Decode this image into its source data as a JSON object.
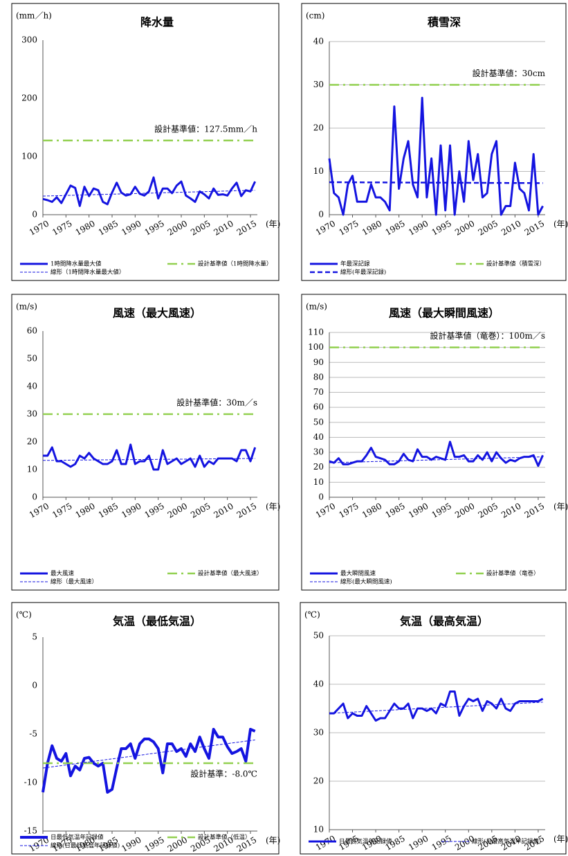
{
  "chart_data": [
    {
      "type": "line",
      "title": "降水量",
      "y_unit": "(mm／h)",
      "x_label": "(年)",
      "annotation": "設計基準値：127.5mm／h",
      "grid": false,
      "x": [
        1970,
        1971,
        1972,
        1973,
        1974,
        1975,
        1976,
        1977,
        1978,
        1979,
        1980,
        1981,
        1982,
        1983,
        1984,
        1985,
        1986,
        1987,
        1988,
        1989,
        1990,
        1991,
        1992,
        1993,
        1994,
        1995,
        1996,
        1997,
        1998,
        1999,
        2000,
        2001,
        2002,
        2003,
        2004,
        2005,
        2006,
        2007,
        2008,
        2009,
        2010,
        2011,
        2012,
        2013,
        2014,
        2015,
        2016
      ],
      "xlim": [
        1970,
        2016.5
      ],
      "xticks": [
        1970,
        1975,
        1980,
        1985,
        1990,
        1995,
        2000,
        2005,
        2010,
        2015
      ],
      "ylim": [
        0,
        300
      ],
      "yticks": [
        0,
        100,
        200,
        300
      ],
      "series": [
        {
          "name": "1時間降水量最大値",
          "color": "#1414e0",
          "style": "solid",
          "values": [
            27,
            25,
            22,
            30,
            20,
            35,
            50,
            46,
            15,
            48,
            32,
            45,
            42,
            22,
            18,
            38,
            55,
            38,
            33,
            35,
            48,
            36,
            33,
            40,
            64,
            28,
            45,
            45,
            37,
            50,
            57,
            33,
            28,
            22,
            40,
            35,
            28,
            45,
            34,
            35,
            33,
            45,
            55,
            32,
            42,
            40,
            57
          ]
        },
        {
          "name": "設計基準値（1時間降水量）",
          "color": "#92d050",
          "style": "dashdot",
          "x": [
            1970,
            2016
          ],
          "values": [
            127.5,
            127.5
          ]
        },
        {
          "name": "線形（1時間降水量最大値）",
          "color": "#1414e0",
          "style": "dashed",
          "x": [
            1970,
            2016
          ],
          "values": [
            32,
            42
          ]
        }
      ]
    },
    {
      "type": "line",
      "title": "積雪深",
      "y_unit": "(cm)",
      "x_label": "(年)",
      "annotation": "設計基準値：30cm",
      "grid": true,
      "x": [
        1970,
        1971,
        1972,
        1973,
        1974,
        1975,
        1976,
        1977,
        1978,
        1979,
        1980,
        1981,
        1982,
        1983,
        1984,
        1985,
        1986,
        1987,
        1988,
        1989,
        1990,
        1991,
        1992,
        1993,
        1994,
        1995,
        1996,
        1997,
        1998,
        1999,
        2000,
        2001,
        2002,
        2003,
        2004,
        2005,
        2006,
        2007,
        2008,
        2009,
        2010,
        2011,
        2012,
        2013,
        2014,
        2015,
        2016
      ],
      "xlim": [
        1970,
        2016.5
      ],
      "xticks": [
        1970,
        1975,
        1980,
        1985,
        1990,
        1995,
        2000,
        2005,
        2010,
        2015
      ],
      "ylim": [
        0,
        40
      ],
      "yticks": [
        0,
        10,
        20,
        30,
        40
      ],
      "series": [
        {
          "name": "年最深記録",
          "color": "#1414e0",
          "style": "solid",
          "values": [
            13,
            5,
            4,
            0,
            7,
            9,
            3,
            3,
            3,
            7,
            4,
            4,
            3,
            1,
            25,
            6,
            13,
            17,
            7,
            4,
            27,
            4,
            13,
            0,
            16,
            1,
            16,
            0,
            10,
            3,
            17,
            8,
            14,
            4,
            5,
            14,
            17,
            0,
            2,
            2,
            12,
            6,
            5,
            1,
            14,
            0,
            2
          ]
        },
        {
          "name": "設計基準値（積雪深）",
          "color": "#92d050",
          "style": "dashdot",
          "x": [
            1970,
            2016
          ],
          "values": [
            30,
            30
          ]
        },
        {
          "name": "線形(年最深記録)",
          "color": "#1414e0",
          "style": "dashedbold",
          "x": [
            1970,
            2016
          ],
          "values": [
            7.5,
            7.3
          ]
        }
      ]
    },
    {
      "type": "line",
      "title": "風速（最大風速）",
      "y_unit": "(m/s)",
      "x_label": "(年)",
      "annotation": "設計基準値：30m／s",
      "grid": false,
      "x": [
        1970,
        1971,
        1972,
        1973,
        1974,
        1975,
        1976,
        1977,
        1978,
        1979,
        1980,
        1981,
        1982,
        1983,
        1984,
        1985,
        1986,
        1987,
        1988,
        1989,
        1990,
        1991,
        1992,
        1993,
        1994,
        1995,
        1996,
        1997,
        1998,
        1999,
        2000,
        2001,
        2002,
        2003,
        2004,
        2005,
        2006,
        2007,
        2008,
        2009,
        2010,
        2011,
        2012,
        2013,
        2014,
        2015,
        2016
      ],
      "xlim": [
        1970,
        2016.5
      ],
      "xticks": [
        1970,
        1975,
        1980,
        1985,
        1990,
        1995,
        2000,
        2005,
        2010,
        2015
      ],
      "ylim": [
        0,
        60
      ],
      "yticks": [
        0,
        10,
        20,
        30,
        40,
        50,
        60
      ],
      "series": [
        {
          "name": "最大風速",
          "color": "#1414e0",
          "style": "solid",
          "values": [
            15,
            15,
            18,
            13,
            13,
            12,
            11,
            12,
            15,
            14,
            16,
            14,
            13,
            12,
            12,
            13,
            17,
            12,
            12,
            19,
            12,
            13,
            13,
            15,
            10,
            10,
            17,
            12,
            13,
            14,
            12,
            13,
            14,
            11,
            15,
            11,
            13,
            12,
            14,
            14,
            14,
            14,
            13,
            17,
            17,
            13,
            18
          ]
        },
        {
          "name": "設計基準値（最大風速）",
          "color": "#92d050",
          "style": "dashdot",
          "x": [
            1970,
            2016
          ],
          "values": [
            30,
            30
          ]
        },
        {
          "name": "線形（最大風速）",
          "color": "#1414e0",
          "style": "dashed",
          "x": [
            1970,
            2016
          ],
          "values": [
            13.3,
            14
          ]
        }
      ]
    },
    {
      "type": "line",
      "title": "風速（最大瞬間風速）",
      "y_unit": "(m/s)",
      "x_label": "(年)",
      "annotation": "設計基準値（竜巻）：100m／s",
      "grid": true,
      "x": [
        1970,
        1971,
        1972,
        1973,
        1974,
        1975,
        1976,
        1977,
        1978,
        1979,
        1980,
        1981,
        1982,
        1983,
        1984,
        1985,
        1986,
        1987,
        1988,
        1989,
        1990,
        1991,
        1992,
        1993,
        1994,
        1995,
        1996,
        1997,
        1998,
        1999,
        2000,
        2001,
        2002,
        2003,
        2004,
        2005,
        2006,
        2007,
        2008,
        2009,
        2010,
        2011,
        2012,
        2013,
        2014,
        2015,
        2016
      ],
      "xlim": [
        1970,
        2016.5
      ],
      "xticks": [
        1970,
        1975,
        1980,
        1985,
        1990,
        1995,
        2000,
        2005,
        2010,
        2015
      ],
      "ylim": [
        0,
        110
      ],
      "yticks": [
        0,
        10,
        20,
        30,
        40,
        50,
        60,
        70,
        80,
        90,
        100,
        110
      ],
      "series": [
        {
          "name": "最大瞬間風速",
          "color": "#1414e0",
          "style": "solid",
          "values": [
            24,
            23,
            26,
            22,
            22,
            23,
            24,
            24,
            28,
            33,
            27,
            26,
            25,
            22,
            22,
            24,
            29,
            25,
            24,
            32,
            27,
            27,
            25,
            27,
            26,
            25,
            37,
            27,
            27,
            28,
            24,
            24,
            28,
            25,
            30,
            24,
            30,
            26,
            23,
            25,
            24,
            26,
            27,
            27,
            28,
            21,
            28
          ]
        },
        {
          "name": "設計基準値（竜巻）",
          "color": "#92d050",
          "style": "dashdot",
          "x": [
            1970,
            2016
          ],
          "values": [
            100,
            100
          ]
        },
        {
          "name": "線形(最大瞬間風速)",
          "color": "#1414e0",
          "style": "dashed",
          "x": [
            1970,
            2016
          ],
          "values": [
            23,
            27
          ]
        }
      ]
    },
    {
      "type": "line",
      "title": "気温（最低気温）",
      "y_unit": "(℃)",
      "x_label": "(年)",
      "annotation": "設計基準：-8.0℃",
      "grid": false,
      "x": [
        1970,
        1971,
        1972,
        1973,
        1974,
        1975,
        1976,
        1977,
        1978,
        1979,
        1980,
        1981,
        1982,
        1983,
        1984,
        1985,
        1986,
        1987,
        1988,
        1989,
        1990,
        1991,
        1992,
        1993,
        1994,
        1995,
        1996,
        1997,
        1998,
        1999,
        2000,
        2001,
        2002,
        2003,
        2004,
        2005,
        2006,
        2007,
        2008,
        2009,
        2010,
        2011,
        2012,
        2013,
        2014,
        2015,
        2016
      ],
      "xlim": [
        1970,
        2016.5
      ],
      "xticks": [
        1970,
        1975,
        1980,
        1985,
        1990,
        1995,
        2000,
        2005,
        2010,
        2015
      ],
      "ylim": [
        -15,
        5
      ],
      "yticks": [
        -15,
        -10,
        -5,
        0,
        5
      ],
      "series": [
        {
          "name": "日最低気温年記録値",
          "color": "#1414e0",
          "style": "solidbold",
          "values": [
            -11,
            -8,
            -6.2,
            -7.5,
            -7.8,
            -7,
            -9.3,
            -8.3,
            -8.7,
            -7.5,
            -7.4,
            -8,
            -8.3,
            -8,
            -11,
            -10.7,
            -8.5,
            -6.5,
            -6.5,
            -6,
            -7.5,
            -6,
            -5.5,
            -5.5,
            -5.8,
            -6.5,
            -9,
            -6,
            -6,
            -6.8,
            -6.5,
            -7.3,
            -6,
            -6.8,
            -5.3,
            -6.5,
            -7.5,
            -4.5,
            -5.3,
            -5.3,
            -6.3,
            -7,
            -6.8,
            -6.5,
            -7.8,
            -4.5,
            -4.7
          ]
        },
        {
          "name": "設計基準値（低温）",
          "color": "#92d050",
          "style": "dashdot",
          "x": [
            1970,
            2016
          ],
          "values": [
            -8,
            -8
          ]
        },
        {
          "name": "線形(日最低気温年記録値)",
          "color": "#1414e0",
          "style": "dashed",
          "x": [
            1970,
            2016
          ],
          "values": [
            -8.5,
            -5.6
          ]
        }
      ]
    },
    {
      "type": "line",
      "title": "気温（最高気温）",
      "y_unit": "(℃)",
      "x_label": "(年)",
      "grid": true,
      "x": [
        1970,
        1971,
        1972,
        1973,
        1974,
        1975,
        1976,
        1977,
        1978,
        1979,
        1980,
        1981,
        1982,
        1983,
        1984,
        1985,
        1986,
        1987,
        1988,
        1989,
        1990,
        1991,
        1992,
        1993,
        1994,
        1995,
        1996,
        1997,
        1998,
        1999,
        2000,
        2001,
        2002,
        2003,
        2004,
        2005,
        2006,
        2007,
        2008,
        2009,
        2010,
        2011,
        2012,
        2013,
        2014,
        2015,
        2016
      ],
      "xlim": [
        1970,
        2016.5
      ],
      "xticks": [
        1970,
        1975,
        1980,
        1985,
        1990,
        1995,
        2000,
        2005,
        2010,
        2015
      ],
      "ylim": [
        10,
        50
      ],
      "yticks": [
        10,
        20,
        30,
        40,
        50
      ],
      "series": [
        {
          "name": "日最高気温年記録値",
          "color": "#1414e0",
          "style": "solid",
          "values": [
            34,
            34,
            35,
            36,
            33,
            34,
            33.5,
            33.5,
            35.5,
            34,
            32.5,
            33,
            33,
            34.5,
            36,
            35,
            35,
            36,
            33,
            35,
            35,
            34.5,
            35,
            34,
            36,
            35.5,
            38.5,
            38.5,
            33.5,
            35.5,
            37,
            36.5,
            37,
            34.5,
            36.5,
            36,
            35,
            37,
            35,
            34.5,
            36,
            36.5,
            36.5,
            36.5,
            36.5,
            36.5,
            37
          ]
        },
        {
          "name": "線形(日最高気温年記録値)",
          "color": "#1414e0",
          "style": "dashed",
          "x": [
            1970,
            2016
          ],
          "values": [
            34,
            36.3
          ]
        }
      ]
    }
  ]
}
